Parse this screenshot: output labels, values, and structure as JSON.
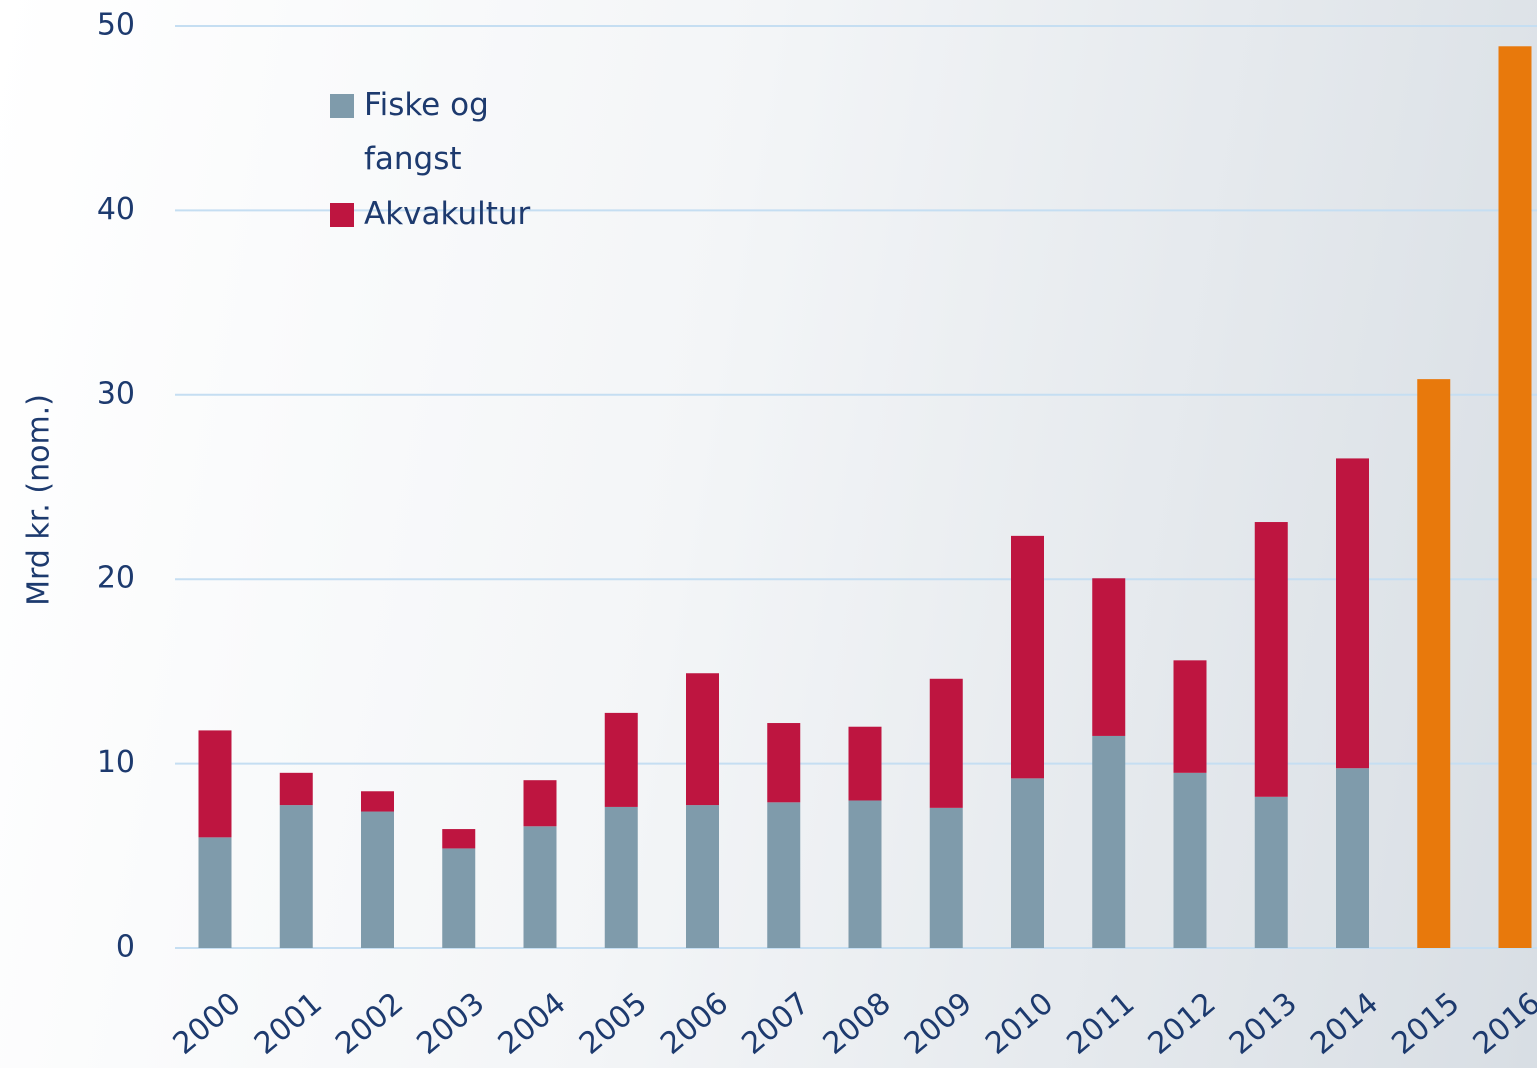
{
  "chart_data": {
    "type": "bar",
    "stacked": true,
    "y_label": "Mrd kr. (nom.)",
    "categories": [
      "2000",
      "2001",
      "2002",
      "2003",
      "2004",
      "2005",
      "2006",
      "2007",
      "2008",
      "2009",
      "2010",
      "2011",
      "2012",
      "2013",
      "2014",
      "2015",
      "2016"
    ],
    "series": [
      {
        "name": "Fiske og fangst",
        "color": "#7f9bab",
        "values": [
          6.0,
          7.75,
          7.4,
          5.4,
          6.6,
          7.65,
          7.75,
          7.9,
          8.0,
          7.6,
          9.2,
          11.5,
          9.5,
          8.2,
          9.75,
          null,
          null
        ]
      },
      {
        "name": "Akvakultur",
        "color": "#be1540",
        "values": [
          5.8,
          1.75,
          1.1,
          1.05,
          2.5,
          5.1,
          7.15,
          4.3,
          4.0,
          7.0,
          13.15,
          8.55,
          6.1,
          14.9,
          16.8,
          null,
          null
        ]
      },
      {
        "color": "#e8790c",
        "values": [
          null,
          null,
          null,
          null,
          null,
          null,
          null,
          null,
          null,
          null,
          null,
          null,
          null,
          null,
          null,
          30.85,
          48.9
        ]
      }
    ],
    "ylim": [
      0,
      50
    ],
    "yticks": [
      0,
      10,
      20,
      30,
      40,
      50
    ],
    "grid": true,
    "legend": "upper left"
  }
}
